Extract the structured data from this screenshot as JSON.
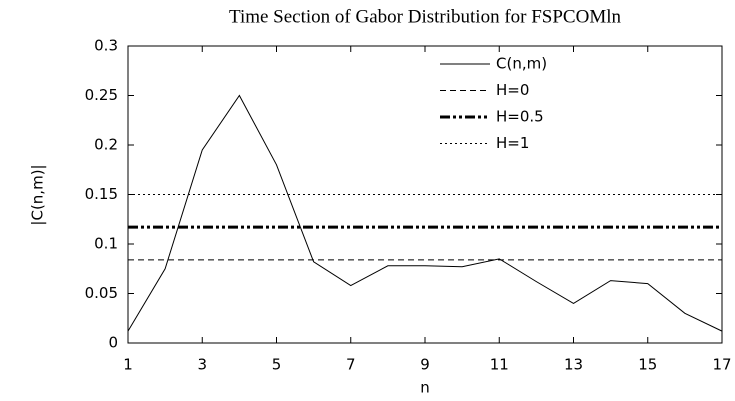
{
  "chart_data": {
    "type": "line",
    "title": "Time Section of Gabor Distribution for FSPCOMln",
    "xlabel": "n",
    "ylabel": "|C(n,m)|",
    "x": [
      1,
      2,
      3,
      4,
      5,
      6,
      7,
      8,
      9,
      10,
      11,
      12,
      13,
      14,
      15,
      16,
      17
    ],
    "series": [
      {
        "name": "C(n,m)",
        "color": "#000000",
        "style": "solid",
        "linewidth": 1,
        "values": [
          0.012,
          0.075,
          0.195,
          0.25,
          0.18,
          0.082,
          0.058,
          0.078,
          0.078,
          0.077,
          0.085,
          0.062,
          0.04,
          0.063,
          0.06,
          0.03,
          0.012
        ]
      },
      {
        "name": "H=0",
        "color": "#000000",
        "style": "dashed",
        "linewidth": 1,
        "values": [
          0.084,
          0.084,
          0.084,
          0.084,
          0.084,
          0.084,
          0.084,
          0.084,
          0.084,
          0.084,
          0.084,
          0.084,
          0.084,
          0.084,
          0.084,
          0.084,
          0.084
        ]
      },
      {
        "name": "H=0.5",
        "color": "#000000",
        "style": "dashdot",
        "linewidth": 3,
        "values": [
          0.117,
          0.117,
          0.117,
          0.117,
          0.117,
          0.117,
          0.117,
          0.117,
          0.117,
          0.117,
          0.117,
          0.117,
          0.117,
          0.117,
          0.117,
          0.117,
          0.117
        ]
      },
      {
        "name": "H=1",
        "color": "#000000",
        "style": "dotted",
        "linewidth": 1,
        "values": [
          0.15,
          0.15,
          0.15,
          0.15,
          0.15,
          0.15,
          0.15,
          0.15,
          0.15,
          0.15,
          0.15,
          0.15,
          0.15,
          0.15,
          0.15,
          0.15,
          0.15
        ]
      }
    ],
    "xlim": [
      1,
      17
    ],
    "xticks": [
      1,
      3,
      5,
      7,
      9,
      11,
      13,
      15,
      17
    ],
    "ylim": [
      0,
      0.3
    ],
    "yticks": [
      0,
      0.05,
      0.1,
      0.15,
      0.2,
      0.25,
      0.3
    ],
    "grid": false,
    "legend": "upper right"
  }
}
